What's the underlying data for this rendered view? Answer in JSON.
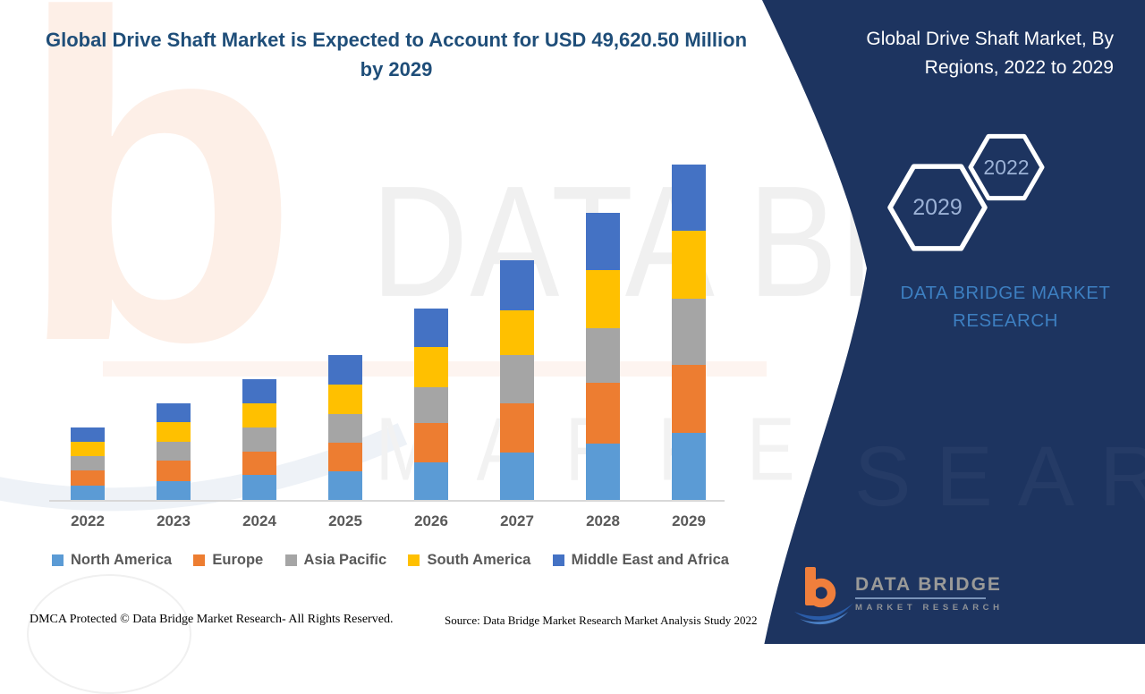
{
  "colors": {
    "panel_navy": "#1d3460",
    "title_blue": "#1f4e79",
    "brand_blue": "#3d7fc1",
    "hex_label_blue": "#9cb2d6",
    "axis_text_gray": "#595959",
    "logo_orange": "#f07f3c",
    "logo_swoosh_blue": "#2a5ca8"
  },
  "chart_data": {
    "type": "bar",
    "stacked": true,
    "title": "Global Drive Shaft Market is Expected to Account for USD 49,620.50 Million by 2029",
    "xlabel": "",
    "ylabel": "",
    "y_axis_visible": false,
    "grid": false,
    "legend_position": "bottom",
    "ylim": [
      0,
      52000
    ],
    "unit": "USD Million",
    "estimated": true,
    "annotation": "USD 49,620.50 Million by 2029",
    "categories": [
      "2022",
      "2023",
      "2024",
      "2025",
      "2026",
      "2027",
      "2028",
      "2029"
    ],
    "series": [
      {
        "name": "North America",
        "color": "#5B9BD5",
        "values": [
          2165,
          2830,
          3670,
          4195,
          5520,
          7010,
          8400,
          9925
        ]
      },
      {
        "name": "Europe",
        "color": "#ED7D31",
        "values": [
          2210,
          2955,
          3535,
          4330,
          5915,
          7320,
          8985,
          10020
        ]
      },
      {
        "name": "Asia Pacific",
        "color": "#A5A5A5",
        "values": [
          2120,
          2870,
          3535,
          4195,
          5295,
          7055,
          8055,
          9830
        ]
      },
      {
        "name": "South America",
        "color": "#FFC000",
        "values": [
          2075,
          2915,
          3620,
          4330,
          5865,
          6710,
          8625,
          10020
        ]
      },
      {
        "name": "Middle East and Africa",
        "color": "#4472C4",
        "values": [
          2120,
          2745,
          3540,
          4380,
          5780,
          7410,
          8400,
          9825.5
        ]
      }
    ],
    "totals": [
      10690,
      14315,
      17900,
      21430,
      28375,
      35505,
      42465,
      49620.5
    ]
  },
  "side_panel": {
    "title": "Global Drive Shaft Market, By Regions, 2022 to 2029",
    "hexagons": [
      {
        "label": "2029"
      },
      {
        "label": "2022"
      }
    ],
    "brand_text": "DATA BRIDGE MARKET RESEARCH"
  },
  "watermark": {
    "monogram": "b",
    "line1": "DATA BRIDGE",
    "line2": "MARKET RESEARCH"
  },
  "logo": {
    "monogram": "b",
    "title": "DATA BRIDGE",
    "subtitle": "MARKET RESEARCH"
  },
  "footer": {
    "dmca": "DMCA Protected © Data Bridge Market Research- All Rights Reserved.",
    "source": "Source: Data Bridge Market Research Market Analysis Study 2022"
  }
}
